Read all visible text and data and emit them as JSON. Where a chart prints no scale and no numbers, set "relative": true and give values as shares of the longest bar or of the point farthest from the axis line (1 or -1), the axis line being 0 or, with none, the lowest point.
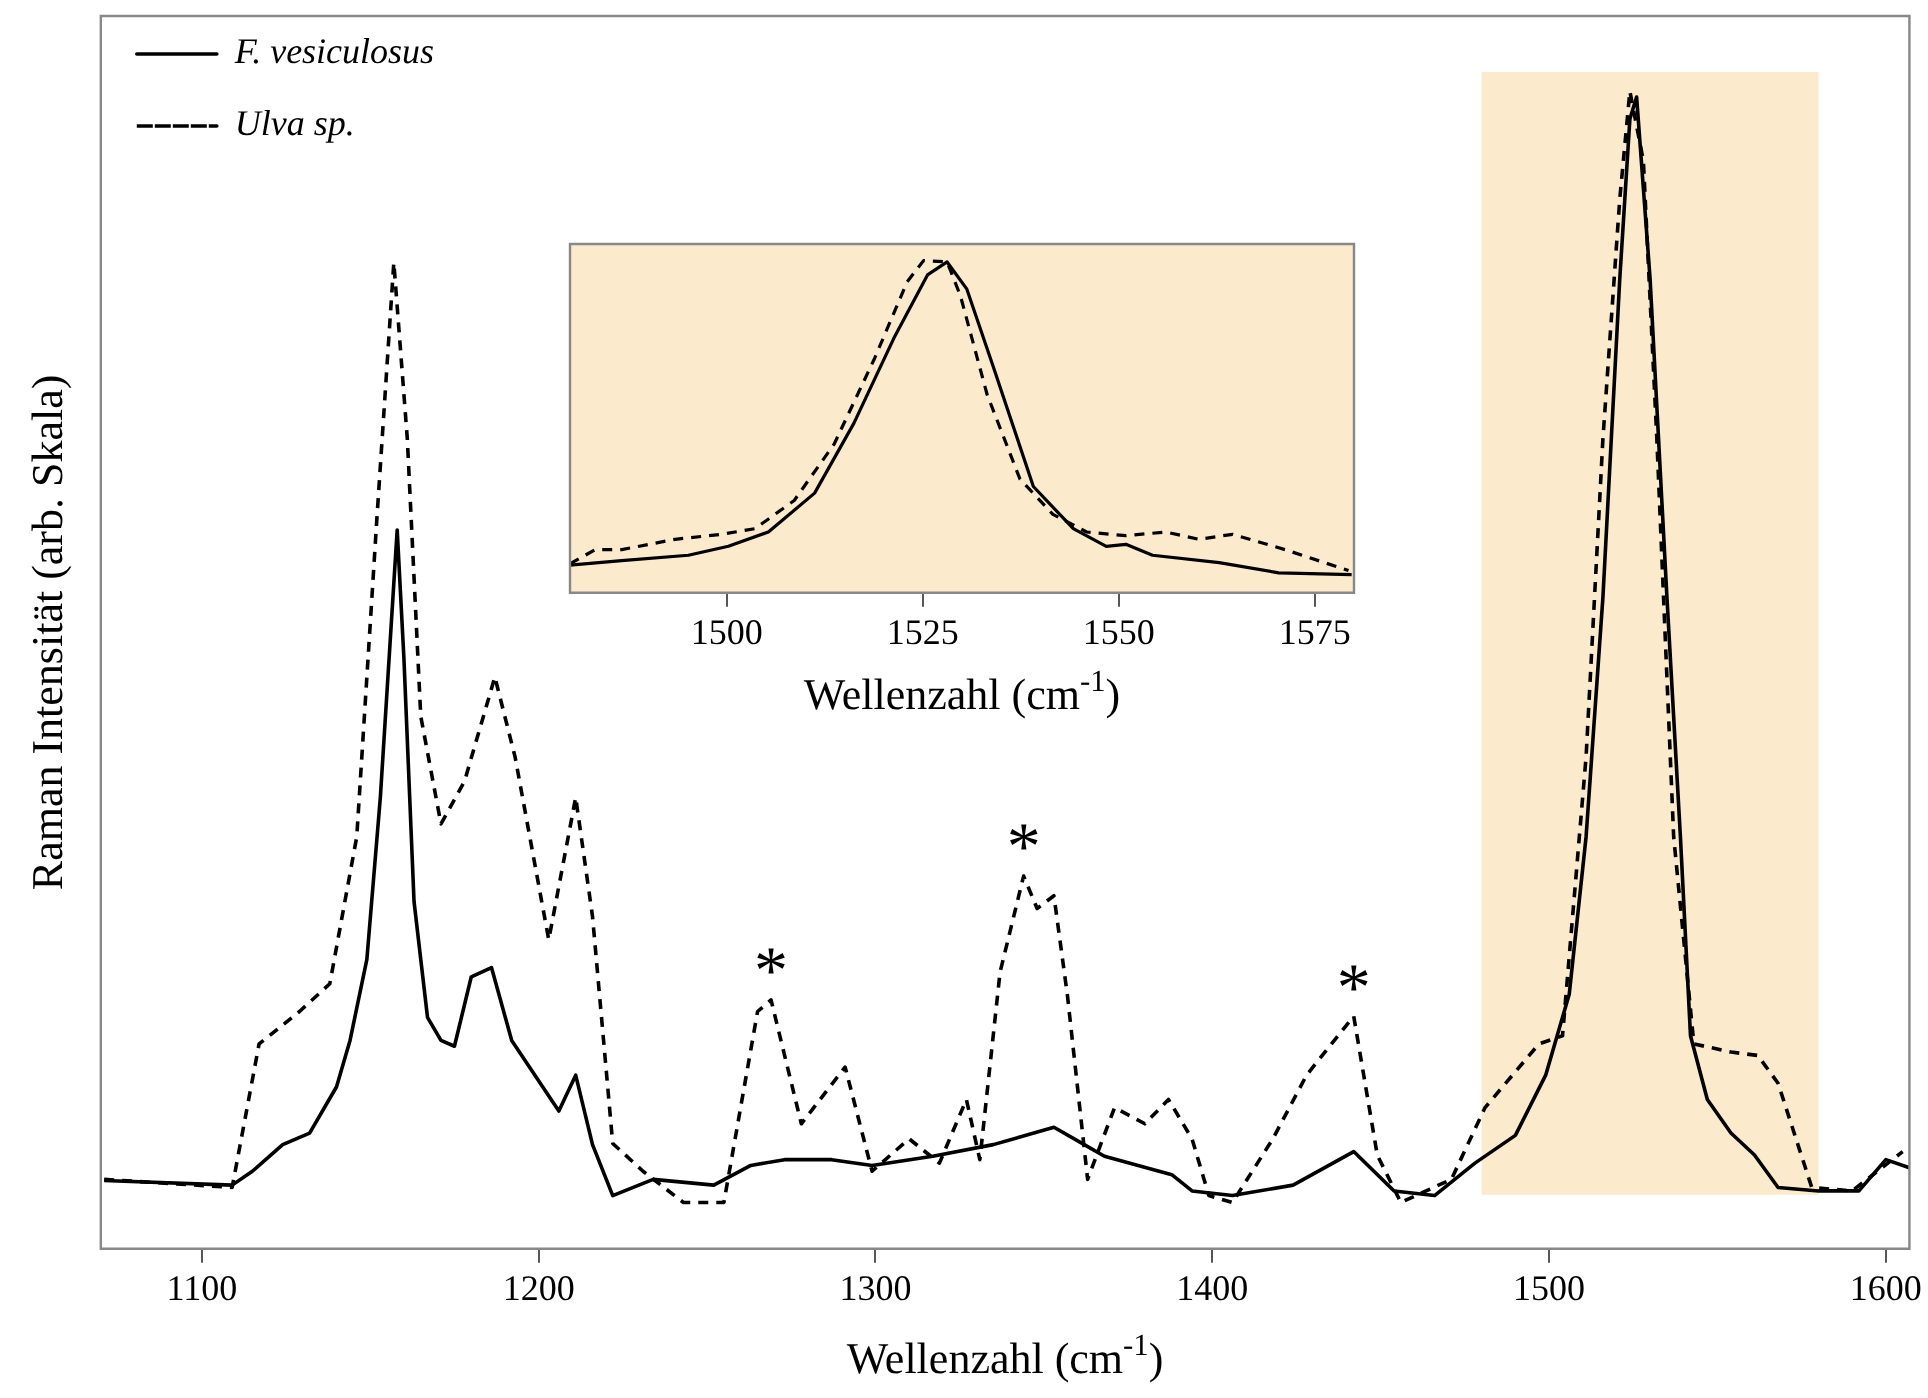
{
  "chart_data": [
    {
      "type": "line",
      "xlabel": "Wellenzahl (cm$^{-1}$)",
      "ylabel": "Raman Intensität (arb. Skala)",
      "relative": true,
      "marker": "none",
      "legend": "top left",
      "xlim": [
        1070,
        1607
      ],
      "xticks": [
        1100,
        1200,
        1300,
        1400,
        1500,
        1600
      ],
      "bands": [
        {
          "axis": "x",
          "from": 1480,
          "to": 1580,
          "color": "#fbeacb"
        }
      ],
      "annotations": [
        {
          "text": "*",
          "x": 1269,
          "y": 0.215
        },
        {
          "text": "*",
          "x": 1344,
          "y": 0.322
        },
        {
          "text": "*",
          "x": 1442,
          "y": 0.201
        }
      ],
      "series": [
        {
          "name": "F. vesiculosus",
          "color": "#000000",
          "line_style": "solid",
          "x": [
            1071,
            1109,
            1115,
            1124,
            1132,
            1140,
            1144,
            1149,
            1153,
            1158,
            1160,
            1163,
            1167,
            1171,
            1175,
            1180,
            1186,
            1192,
            1206,
            1211,
            1216,
            1222,
            1234,
            1252,
            1263,
            1273,
            1287,
            1299,
            1317,
            1335,
            1353,
            1362,
            1368,
            1388,
            1394,
            1406,
            1424,
            1442,
            1454,
            1466,
            1478,
            1490,
            1499,
            1506,
            1511,
            1516,
            1521,
            1524,
            1526,
            1530,
            1535,
            1539,
            1542,
            1547,
            1554,
            1561,
            1568,
            1580,
            1592,
            1600,
            1607
          ],
          "values": [
            0.059,
            0.055,
            0.067,
            0.09,
            0.1,
            0.14,
            0.18,
            0.25,
            0.39,
            0.621,
            0.51,
            0.3,
            0.2,
            0.18,
            0.175,
            0.235,
            0.243,
            0.18,
            0.119,
            0.15,
            0.09,
            0.046,
            0.06,
            0.055,
            0.072,
            0.077,
            0.077,
            0.072,
            0.08,
            0.09,
            0.105,
            0.09,
            0.08,
            0.064,
            0.05,
            0.046,
            0.055,
            0.084,
            0.05,
            0.046,
            0.074,
            0.098,
            0.15,
            0.22,
            0.356,
            0.563,
            0.838,
            0.976,
            0.995,
            0.838,
            0.563,
            0.356,
            0.184,
            0.129,
            0.1,
            0.081,
            0.053,
            0.05,
            0.05,
            0.077,
            0.07
          ]
        },
        {
          "name": "Ulva sp.",
          "color": "#000000",
          "line_style": "dashed",
          "x": [
            1071,
            1109,
            1117,
            1129,
            1138,
            1146,
            1152,
            1157,
            1161,
            1165,
            1171,
            1178,
            1187,
            1193,
            1203,
            1211,
            1216,
            1222,
            1231,
            1243,
            1255,
            1265,
            1269,
            1278,
            1291,
            1299,
            1310,
            1319,
            1327,
            1331,
            1337,
            1344,
            1348,
            1353,
            1357,
            1363,
            1371,
            1380,
            1387,
            1394,
            1399,
            1406,
            1418,
            1428,
            1442,
            1449,
            1456,
            1471,
            1481,
            1497,
            1504,
            1511,
            1516,
            1521,
            1524,
            1528,
            1532,
            1537,
            1543,
            1554,
            1562,
            1568,
            1578,
            1590,
            1605
          ],
          "values": [
            0.06,
            0.053,
            0.177,
            0.205,
            0.229,
            0.356,
            0.632,
            0.852,
            0.7,
            0.46,
            0.367,
            0.404,
            0.494,
            0.425,
            0.267,
            0.39,
            0.287,
            0.091,
            0.067,
            0.04,
            0.04,
            0.205,
            0.215,
            0.108,
            0.157,
            0.067,
            0.095,
            0.074,
            0.129,
            0.077,
            0.239,
            0.322,
            0.294,
            0.305,
            0.219,
            0.06,
            0.122,
            0.108,
            0.129,
            0.095,
            0.046,
            0.04,
            0.095,
            0.15,
            0.201,
            0.081,
            0.04,
            0.06,
            0.122,
            0.177,
            0.184,
            0.425,
            0.7,
            0.907,
            1.0,
            0.94,
            0.7,
            0.356,
            0.177,
            0.17,
            0.167,
            0.143,
            0.053,
            0.05,
            0.084
          ]
        }
      ]
    },
    {
      "type": "line",
      "xlabel": "Wellenzahl (cm$^{-1}$)",
      "relative": true,
      "marker": "none",
      "xlim": [
        1480,
        1580
      ],
      "xticks": [
        1500,
        1525,
        1550,
        1575
      ],
      "series": [
        {
          "color": "#000000",
          "line_style": "solid",
          "x": [
            1480,
            1486.6,
            1495.1,
            1500.2,
            1505.3,
            1511.2,
            1516.2,
            1521.3,
            1525.6,
            1528.1,
            1530.6,
            1534,
            1539.1,
            1544.2,
            1548.4,
            1550.9,
            1554.3,
            1562.8,
            1570.4,
            1579.7
          ],
          "values": [
            0.083,
            0.097,
            0.113,
            0.14,
            0.183,
            0.3,
            0.51,
            0.766,
            0.957,
            0.996,
            0.915,
            0.68,
            0.32,
            0.193,
            0.14,
            0.146,
            0.113,
            0.091,
            0.06,
            0.055
          ]
        },
        {
          "color": "#000000",
          "line_style": "dashed",
          "x": [
            1480,
            1483.2,
            1486.6,
            1493.4,
            1499.3,
            1503.6,
            1508.6,
            1513.7,
            1518.8,
            1523,
            1525.1,
            1528.1,
            1529.8,
            1533.2,
            1537.4,
            1541.6,
            1545.9,
            1550.9,
            1556,
            1560.2,
            1564.5,
            1571.2,
            1579.3
          ],
          "values": [
            0.087,
            0.13,
            0.13,
            0.161,
            0.176,
            0.193,
            0.278,
            0.448,
            0.703,
            0.936,
            1.0,
            0.996,
            0.894,
            0.597,
            0.342,
            0.236,
            0.183,
            0.172,
            0.183,
            0.161,
            0.176,
            0.13,
            0.067
          ]
        }
      ]
    }
  ]
}
